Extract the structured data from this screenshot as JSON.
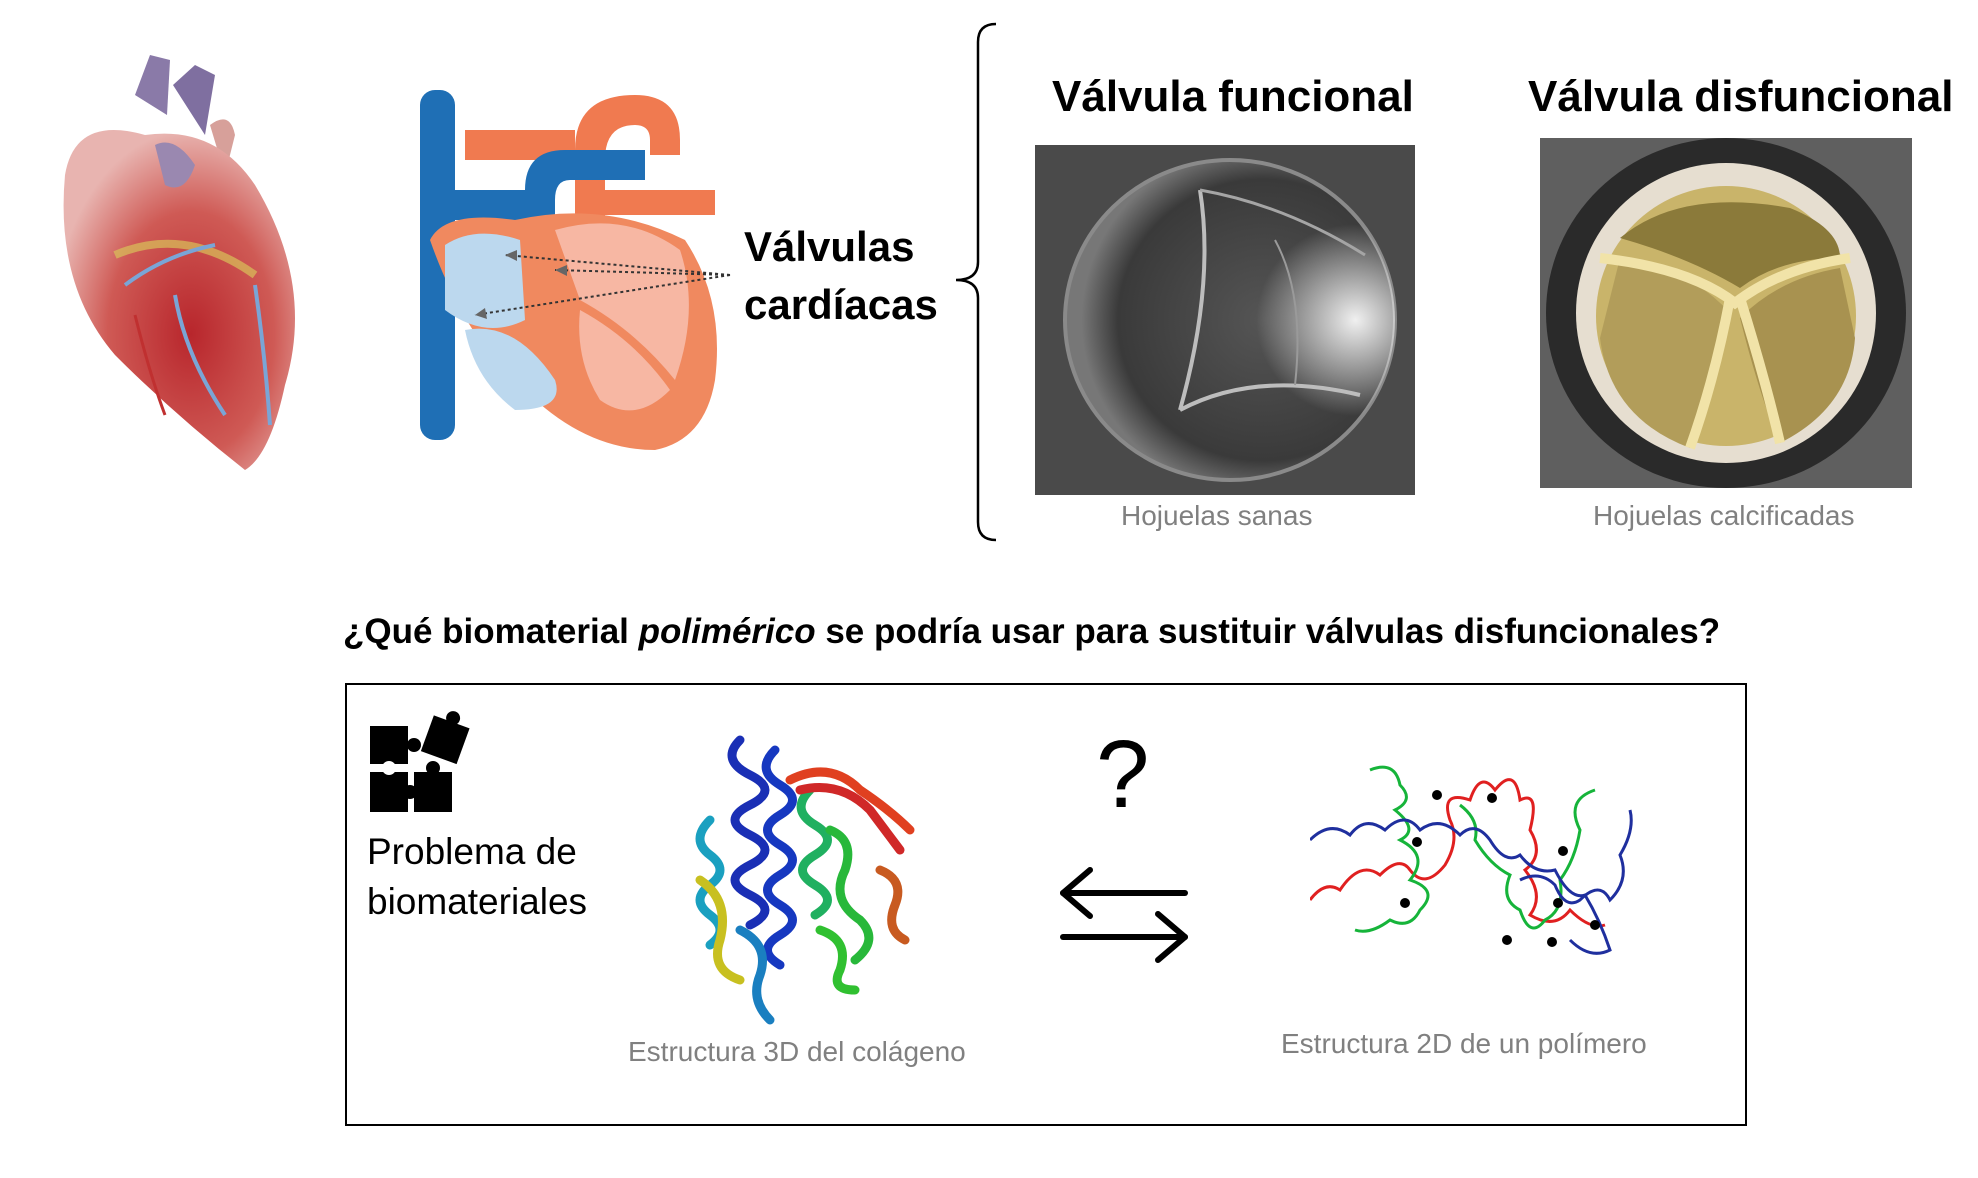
{
  "top": {
    "valves_label_line1": "Válvulas",
    "valves_label_line2": "cardíacas",
    "functional_title": "Válvula funcional",
    "dysfunctional_title": "Válvula disfuncional",
    "functional_caption": "Hojuelas sanas",
    "dysfunctional_caption": "Hojuelas calcificadas"
  },
  "question": {
    "before": "¿Qué biomaterial ",
    "emphasis": "polimérico",
    "after": " se podría usar para sustituir válvulas disfuncionales?"
  },
  "panel": {
    "problem_line1": "Problema de",
    "problem_line2": "biomateriales",
    "question_mark": "?",
    "collagen_caption": "Estructura 3D del colágeno",
    "polymer_caption": "Estructura 2D de un polímero"
  },
  "icons": {
    "puzzle": "puzzle-icon",
    "exchange": "exchange-arrows-icon"
  },
  "colors": {
    "caption_gray": "#808080",
    "vein_blue": "#1f6fb5",
    "artery_orange": "#f07a50",
    "polymer_red": "#e02020",
    "polymer_green": "#16b43a",
    "polymer_blue": "#1f2f9e"
  }
}
